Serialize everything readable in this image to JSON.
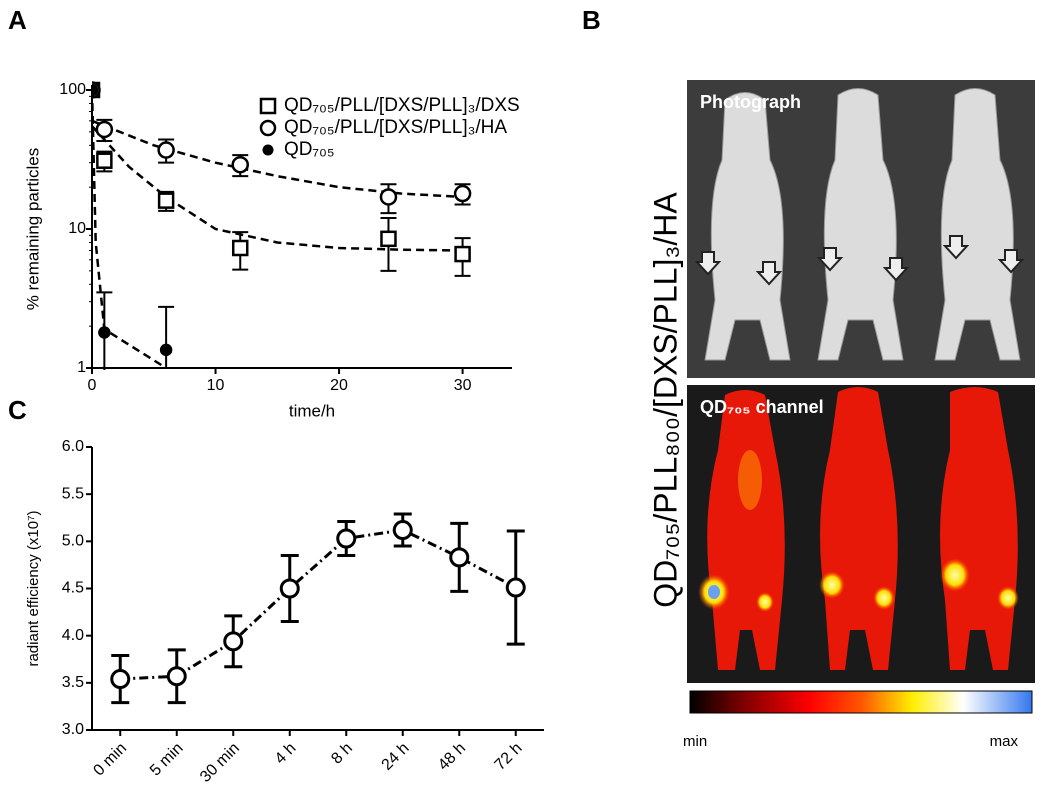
{
  "chart_data": [
    {
      "type": "scatter",
      "ylabel": "% remaining particles",
      "xlabel": "time/h",
      "log_y": true,
      "ylim": [
        1,
        100
      ],
      "yticks": [
        1,
        10,
        100
      ],
      "xlim": [
        0,
        34
      ],
      "xticks": [
        0,
        10,
        20,
        30
      ],
      "legend": "top-right",
      "series": [
        {
          "name": "QD₇₀₅/PLL/[DXS/PLL]₃/DXS",
          "marker": "square",
          "color": "#000000",
          "x": [
            0,
            1,
            6,
            12,
            24,
            30
          ],
          "values": [
            100,
            31,
            16,
            7.3,
            8.5,
            6.6
          ],
          "errors": [
            0,
            5,
            2.5,
            2.2,
            3.5,
            2
          ],
          "fit": {
            "x": [
              0,
              3,
              6,
              10,
              15,
              20,
              25,
              30
            ],
            "values": [
              55,
              28,
              17,
              10,
              8,
              7.3,
              7.1,
              7
            ]
          }
        },
        {
          "name": "QD₇₀₅/PLL/[DXS/PLL]₃/HA",
          "marker": "circle",
          "color": "#000000",
          "x": [
            0,
            1,
            6,
            12,
            24,
            30
          ],
          "values": [
            100,
            52,
            37,
            29,
            17,
            18
          ],
          "errors": [
            0,
            9,
            7,
            5,
            4,
            3
          ],
          "fit": {
            "x": [
              0,
              5,
              10,
              15,
              20,
              25,
              30
            ],
            "values": [
              60,
              40,
              30,
              24,
              20,
              18,
              17
            ]
          }
        },
        {
          "name": "QD₇₀₅",
          "marker": "dot",
          "color": "#000000",
          "x": [
            0,
            1,
            6
          ],
          "values": [
            100,
            1.8,
            1.35
          ],
          "errors": [
            0,
            1.7,
            1.4
          ],
          "fit": {
            "x": [
              0,
              0.3,
              1,
              6
            ],
            "values": [
              100,
              8,
              1.9,
              1
            ]
          }
        }
      ]
    },
    {
      "type": "line",
      "ylabel": "radiant efficiency (x10⁷)",
      "categories": [
        "0 min",
        "5 min",
        "30 min",
        "4 h",
        "8 h",
        "24 h",
        "48 h",
        "72 h"
      ],
      "values": [
        3.54,
        3.57,
        3.94,
        4.5,
        5.03,
        5.12,
        4.83,
        4.51
      ],
      "errors": [
        0.25,
        0.28,
        0.27,
        0.35,
        0.18,
        0.17,
        0.36,
        0.6
      ],
      "color": "#000000",
      "ylim": [
        3.0,
        6.0
      ],
      "yticks": [
        {
          "value": 3.0,
          "label": "3.0"
        },
        {
          "value": 3.5,
          "label": "3.5"
        },
        {
          "value": 4.0,
          "label": "4.0"
        },
        {
          "value": 4.5,
          "label": "4.5"
        },
        {
          "value": 5.0,
          "label": "5.0"
        },
        {
          "value": 5.5,
          "label": "5.5"
        },
        {
          "value": 6.0,
          "label": "6.0"
        }
      ]
    }
  ],
  "figure": {
    "panel_labels": [
      "A",
      "B",
      "C"
    ],
    "image_panel": {
      "label": "QD₇₀₅/PLL₈₀₀/[DXS/PLL]₃/HA",
      "photo_label": "Photograph",
      "channel_label": "QD₇₀₅ channel",
      "scale_min": "min",
      "scale_max": "max"
    }
  }
}
